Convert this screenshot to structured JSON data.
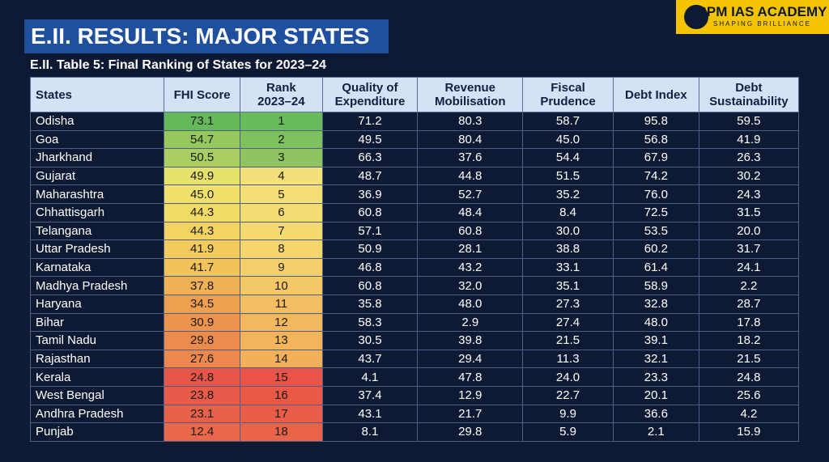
{
  "header": {
    "title": "E.II. RESULTS: MAJOR STATES",
    "logo": {
      "name": "SPM IAS ACADEMY",
      "tagline": "SHAPING BRILLIANCE"
    }
  },
  "table": {
    "caption": "E.II. Table 5: Final Ranking of States for 2023–24",
    "columns": [
      [
        "States"
      ],
      [
        "FHI Score"
      ],
      [
        "Rank",
        "2023–24"
      ],
      [
        "Quality of",
        "Expenditure"
      ],
      [
        "Revenue",
        "Mobilisation"
      ],
      [
        "Fiscal",
        "Prudence"
      ],
      [
        "Debt Index"
      ],
      [
        "Debt",
        "Sustainability"
      ]
    ],
    "rows": [
      [
        "Odisha",
        "73.1",
        "1",
        "71.2",
        "80.3",
        "58.7",
        "95.8",
        "59.5"
      ],
      [
        "Goa",
        "54.7",
        "2",
        "49.5",
        "80.4",
        "45.0",
        "56.8",
        "41.9"
      ],
      [
        "Jharkhand",
        "50.5",
        "3",
        "66.3",
        "37.6",
        "54.4",
        "67.9",
        "26.3"
      ],
      [
        "Gujarat",
        "49.9",
        "4",
        "48.7",
        "44.8",
        "51.5",
        "74.2",
        "30.2"
      ],
      [
        "Maharashtra",
        "45.0",
        "5",
        "36.9",
        "52.7",
        "35.2",
        "76.0",
        "24.3"
      ],
      [
        "Chhattisgarh",
        "44.3",
        "6",
        "60.8",
        "48.4",
        "8.4",
        "72.5",
        "31.5"
      ],
      [
        "Telangana",
        "44.3",
        "7",
        "57.1",
        "60.8",
        "30.0",
        "53.5",
        "20.0"
      ],
      [
        "Uttar Pradesh",
        "41.9",
        "8",
        "50.9",
        "28.1",
        "38.8",
        "60.2",
        "31.7"
      ],
      [
        "Karnataka",
        "41.7",
        "9",
        "46.8",
        "43.2",
        "33.1",
        "61.4",
        "24.1"
      ],
      [
        "Madhya Pradesh",
        "37.8",
        "10",
        "60.8",
        "32.0",
        "35.1",
        "58.9",
        "2.2"
      ],
      [
        "Haryana",
        "34.5",
        "11",
        "35.8",
        "48.0",
        "27.3",
        "32.8",
        "28.7"
      ],
      [
        "Bihar",
        "30.9",
        "12",
        "58.3",
        "2.9",
        "27.4",
        "48.0",
        "17.8"
      ],
      [
        "Tamil Nadu",
        "29.8",
        "13",
        "30.5",
        "39.8",
        "21.5",
        "39.1",
        "18.2"
      ],
      [
        "Rajasthan",
        "27.6",
        "14",
        "43.7",
        "29.4",
        "11.3",
        "32.1",
        "21.5"
      ],
      [
        "Kerala",
        "24.8",
        "15",
        "4.1",
        "47.8",
        "24.0",
        "23.3",
        "24.8"
      ],
      [
        "West Bengal",
        "23.8",
        "16",
        "37.4",
        "12.9",
        "22.7",
        "20.1",
        "25.6"
      ],
      [
        "Andhra Pradesh",
        "23.1",
        "17",
        "43.1",
        "21.7",
        "9.9",
        "36.6",
        "4.2"
      ],
      [
        "Punjab",
        "12.4",
        "18",
        "8.1",
        "29.8",
        "5.9",
        "2.1",
        "15.9"
      ]
    ]
  }
}
